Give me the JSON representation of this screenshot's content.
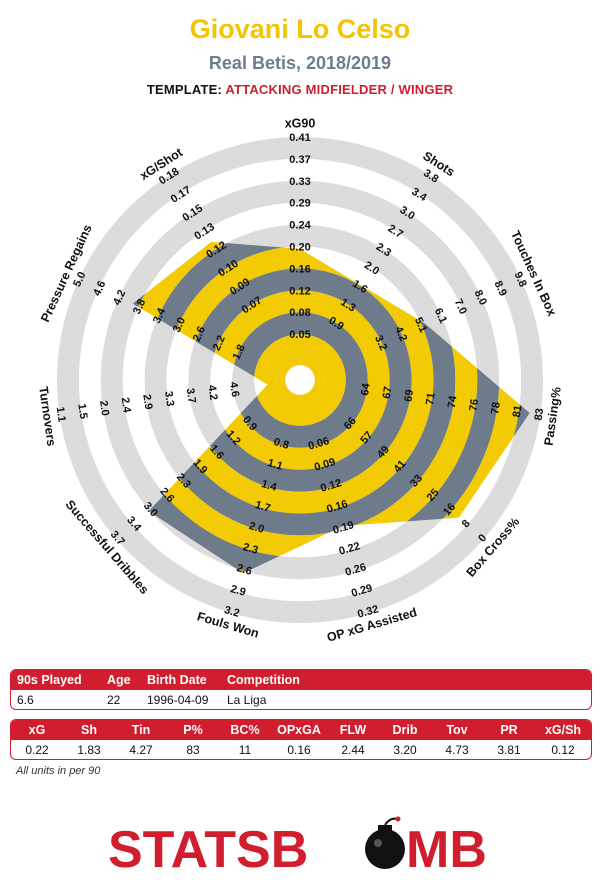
{
  "header": {
    "player": "Giovani Lo Celso",
    "team_season": "Real Betis, 2018/2019",
    "template_label": "TEMPLATE:",
    "template_value": "ATTACKING MIDFIELDER / WINGER"
  },
  "colors": {
    "title": "#f2c500",
    "subtitle": "#6f7c8c",
    "accent_red": "#d01e2e",
    "ring_gray": "#dcdcdc",
    "band_slate": "#6e7b8b",
    "band_yellow": "#f2cb05"
  },
  "chart_data": {
    "type": "radar",
    "rings": 10,
    "axes": [
      {
        "label": "xG90",
        "value": 0.22,
        "ticks": [
          "0.05",
          "0.08",
          "0.12",
          "0.16",
          "0.20",
          "0.24",
          "0.29",
          "0.33",
          "0.37",
          "0.41"
        ]
      },
      {
        "label": "Shots",
        "value": 1.83,
        "ticks": [
          "0.9",
          "1.3",
          "1.6",
          "2.0",
          "2.3",
          "2.7",
          "3.0",
          "3.4",
          "3.8"
        ]
      },
      {
        "label": "Touches In Box",
        "value": 4.27,
        "ticks": [
          "3.2",
          "4.2",
          "5.1",
          "6.1",
          "7.0",
          "8.0",
          "8.9",
          "9.8"
        ]
      },
      {
        "label": "Passing%",
        "value": 83,
        "ticks": [
          "64",
          "67",
          "69",
          "71",
          "74",
          "76",
          "78",
          "81",
          "83"
        ]
      },
      {
        "label": "Box Cross%",
        "value": 11,
        "ticks": [
          "66",
          "57",
          "49",
          "41",
          "33",
          "25",
          "16",
          "8",
          "0"
        ]
      },
      {
        "label": "OP xG Assisted",
        "value": 0.16,
        "ticks": [
          "0.06",
          "0.09",
          "0.12",
          "0.16",
          "0.19",
          "0.22",
          "0.26",
          "0.29",
          "0.32"
        ]
      },
      {
        "label": "Fouls Won",
        "value": 2.44,
        "ticks": [
          "0.8",
          "1.1",
          "1.4",
          "1.7",
          "2.0",
          "2.3",
          "2.6",
          "2.9",
          "3.2"
        ]
      },
      {
        "label": "Successful Dribbles",
        "value": 3.2,
        "ticks": [
          "0.9",
          "1.2",
          "1.6",
          "1.9",
          "2.3",
          "2.6",
          "3.0",
          "3.4",
          "3.7"
        ]
      },
      {
        "label": "Turnovers",
        "value": 4.73,
        "ticks": [
          "4.6",
          "4.2",
          "3.7",
          "3.3",
          "2.9",
          "2.4",
          "2.0",
          "1.5",
          "1.1"
        ]
      },
      {
        "label": "Pressure Regains",
        "value": 3.81,
        "ticks": [
          "1.8",
          "2.2",
          "2.6",
          "3.0",
          "3.4",
          "3.8",
          "4.2",
          "4.6",
          "5.0"
        ]
      },
      {
        "label": "xG/Shot",
        "value": 0.12,
        "ticks": [
          "0.07",
          "0.09",
          "0.10",
          "0.12",
          "0.13",
          "0.15",
          "0.17",
          "0.18"
        ]
      }
    ],
    "fractions": [
      0.489,
      0.405,
      0.515,
      0.95,
      0.85,
      0.585,
      0.81,
      0.805,
      0.04,
      0.73,
      0.64
    ]
  },
  "info_table": {
    "headers": [
      "90s Played",
      "Age",
      "Birth Date",
      "Competition"
    ],
    "values": [
      "6.6",
      "22",
      "1996-04-09",
      "La Liga"
    ]
  },
  "stats_table": {
    "headers": [
      "xG",
      "Sh",
      "Tin",
      "P%",
      "BC%",
      "OPxGA",
      "FLW",
      "Drib",
      "Tov",
      "PR",
      "xG/Sh"
    ],
    "values": [
      "0.22",
      "1.83",
      "4.27",
      "83",
      "11",
      "0.16",
      "2.44",
      "3.20",
      "4.73",
      "3.81",
      "0.12"
    ]
  },
  "footnote": "All units in per 90",
  "logo": {
    "text_a": "STATSB",
    "text_b": "MB"
  }
}
